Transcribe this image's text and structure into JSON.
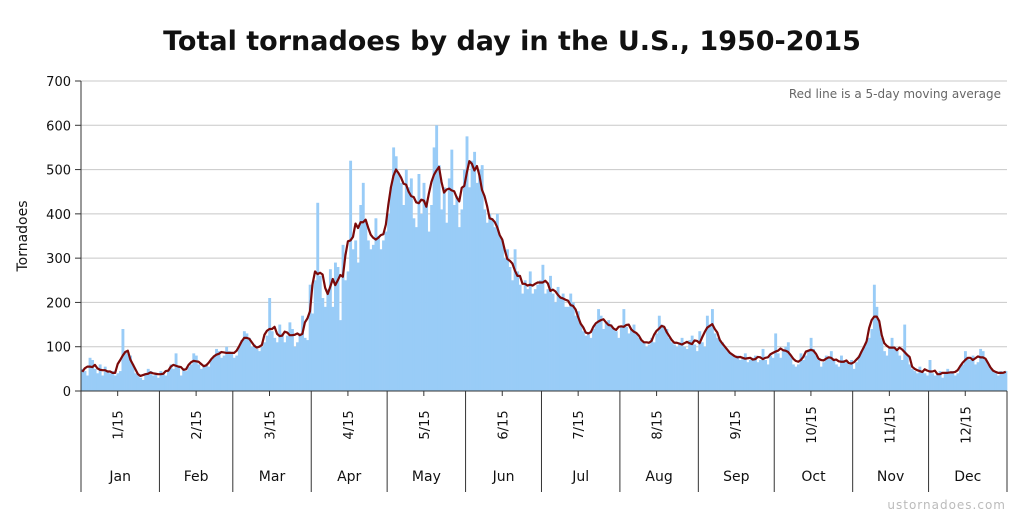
{
  "chart_data": {
    "type": "bar",
    "title": "Total tornadoes by day in the U.S., 1950-2015",
    "xlabel": "",
    "ylabel": "Tornadoes",
    "ylim": [
      0,
      700
    ],
    "yticks": [
      0,
      100,
      200,
      300,
      400,
      500,
      600,
      700
    ],
    "grid": true,
    "annotation": "Red line is a 5-day moving average",
    "months": [
      "Jan",
      "Feb",
      "Mar",
      "Apr",
      "May",
      "Jun",
      "Jul",
      "Aug",
      "Sep",
      "Oct",
      "Nov",
      "Dec"
    ],
    "month_days": [
      31,
      29,
      31,
      30,
      31,
      30,
      31,
      31,
      30,
      31,
      30,
      31
    ],
    "mid_month_labels": [
      "1/15",
      "2/15",
      "3/15",
      "4/15",
      "5/15",
      "6/15",
      "7/15",
      "8/15",
      "9/15",
      "10/15",
      "11/15",
      "12/15"
    ],
    "bar_color": "#99ccf7",
    "line_color": "#7a0a0a",
    "series": [
      {
        "values": [
          50,
          45,
          35,
          75,
          70,
          50,
          40,
          60,
          35,
          55,
          45,
          40,
          45,
          35,
          40,
          45,
          140,
          90,
          85,
          80,
          60,
          40,
          35,
          30,
          25,
          40,
          50,
          45,
          35,
          40,
          30,
          45,
          40,
          35,
          45,
          60,
          50,
          85,
          55,
          35,
          50,
          45,
          55,
          60,
          85,
          80,
          60,
          50,
          55,
          60,
          55,
          70,
          80,
          95,
          90,
          75,
          80,
          100,
          90,
          85,
          75,
          80,
          100,
          115,
          135,
          130,
          120,
          100,
          105,
          95,
          90,
          100,
          110,
          125,
          210,
          135,
          120,
          110,
          150,
          130,
          110,
          125,
          155,
          140,
          100,
          110,
          130,
          170,
          120,
          115,
          240,
          175,
          250,
          425,
          260,
          210,
          190,
          230,
          275,
          190,
          290,
          280,
          160,
          330,
          250,
          270,
          520,
          320,
          340,
          290,
          420,
          470,
          385,
          340,
          320,
          330,
          390,
          350,
          320,
          340,
          360,
          400,
          460,
          550,
          530,
          490,
          470,
          420,
          500,
          460,
          480,
          390,
          370,
          490,
          400,
          470,
          430,
          360,
          420,
          550,
          600,
          510,
          410,
          460,
          380,
          480,
          545,
          420,
          440,
          370,
          410,
          500,
          575,
          460,
          520,
          540,
          470,
          500,
          510,
          410,
          380,
          400,
          390,
          370,
          400,
          350,
          340,
          300,
          320,
          280,
          250,
          320,
          270,
          240,
          220,
          250,
          230,
          270,
          220,
          230,
          240,
          250,
          285,
          220,
          230,
          260,
          220,
          200,
          235,
          210,
          220,
          190,
          190,
          220,
          200,
          170,
          180,
          150,
          135,
          125,
          130,
          120,
          140,
          150,
          185,
          170,
          140,
          155,
          160,
          150,
          140,
          135,
          120,
          145,
          185,
          145,
          130,
          140,
          150,
          130,
          120,
          115,
          110,
          100,
          105,
          120,
          110,
          130,
          170,
          150,
          145,
          140,
          120,
          110,
          105,
          100,
          110,
          120,
          100,
          95,
          115,
          125,
          105,
          90,
          135,
          110,
          100,
          170,
          150,
          185,
          130,
          120,
          115,
          110,
          100,
          90,
          85,
          80,
          75,
          80,
          70,
          75,
          85,
          65,
          70,
          75,
          80,
          65,
          70,
          95,
          70,
          60,
          80,
          75,
          130,
          85,
          75,
          90,
          100,
          110,
          80,
          60,
          55,
          60,
          85,
          70,
          80,
          90,
          120,
          95,
          80,
          70,
          55,
          65,
          80,
          75,
          90,
          70,
          60,
          55,
          80,
          70,
          65,
          60,
          70,
          50,
          65,
          80,
          90,
          100,
          110,
          120,
          140,
          240,
          190,
          150,
          120,
          90,
          80,
          100,
          120,
          100,
          90,
          80,
          70,
          150,
          80,
          60,
          50,
          45,
          40,
          55,
          45,
          40,
          35,
          70,
          40,
          35,
          40,
          45,
          30,
          40,
          50,
          40,
          45,
          35,
          40,
          55,
          60,
          90,
          75,
          70,
          80,
          60,
          65,
          95,
          90,
          70,
          60,
          50,
          45,
          40,
          35,
          45,
          40,
          45
        ]
      }
    ]
  },
  "watermark": "ustornadoes.com"
}
